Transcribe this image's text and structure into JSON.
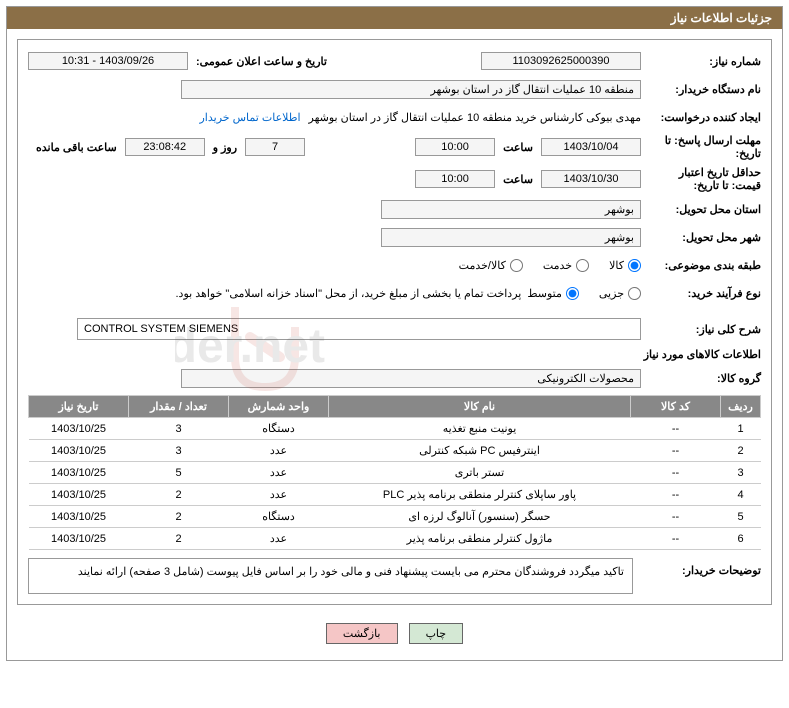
{
  "header": "جزئیات اطلاعات نیاز",
  "labels": {
    "needNo": "شماره نیاز:",
    "announceDate": "تاریخ و ساعت اعلان عمومی:",
    "buyerOrg": "نام دستگاه خریدار:",
    "requester": "ایجاد کننده درخواست:",
    "contactLink": "اطلاعات تماس خریدار",
    "answerDeadline": "مهلت ارسال پاسخ: تا تاریخ:",
    "hour": "ساعت",
    "daysAnd": "روز و",
    "remaining": "ساعت باقی مانده",
    "priceValidity": "حداقل تاریخ اعتبار قیمت: تا تاریخ:",
    "province": "استان محل تحویل:",
    "city": "شهر محل تحویل:",
    "category": "طبقه بندی موضوعی:",
    "processType": "نوع فرآیند خرید:",
    "descTitle": "شرح کلی نیاز:",
    "goodsInfo": "اطلاعات کالاهای مورد نیاز",
    "goodsGroup": "گروه کالا:",
    "buyerNotes": "توضیحات خریدار:"
  },
  "values": {
    "needNo": "1103092625000390",
    "announceDate": "1403/09/26 - 10:31",
    "buyerOrg": "منطقه 10 عملیات انتقال گاز در استان بوشهر",
    "requester": "مهدی بیوکی کارشناس خرید منطقه 10 عملیات انتقال گاز در استان بوشهر",
    "answerDate": "1403/10/04",
    "answerTime": "10:00",
    "daysLeft": "7",
    "countdown": "23:08:42",
    "priceDate": "1403/10/30",
    "priceTime": "10:00",
    "province": "بوشهر",
    "city": "بوشهر",
    "desc": "CONTROL SYSTEM SIEMENS",
    "goodsGroup": "محصولات الکترونیکی",
    "treasuryNote": "پرداخت تمام یا بخشی از مبلغ خرید، از محل \"اسناد خزانه اسلامی\" خواهد بود.",
    "buyerNotes": "تاکید میگردد فروشندگان محترم می بایست پیشنهاد فنی و مالی خود را بر اساس فایل پیوست (شامل 3 صفحه) ارائه نمایند"
  },
  "radios": {
    "category": {
      "options": [
        "کالا",
        "خدمت",
        "کالا/خدمت"
      ],
      "selected": 0
    },
    "processType": {
      "options": [
        "جزیی",
        "متوسط"
      ],
      "selected": 1
    }
  },
  "table": {
    "headers": [
      "ردیف",
      "کد کالا",
      "نام کالا",
      "واحد شمارش",
      "تعداد / مقدار",
      "تاریخ نیاز"
    ],
    "rows": [
      [
        "1",
        "--",
        "یونیت منبع تغذیه",
        "دستگاه",
        "3",
        "1403/10/25"
      ],
      [
        "2",
        "--",
        "اینترفیس PC شبکه کنترلی",
        "عدد",
        "3",
        "1403/10/25"
      ],
      [
        "3",
        "--",
        "تستر باتری",
        "عدد",
        "5",
        "1403/10/25"
      ],
      [
        "4",
        "--",
        "پاور ساپلای کنترلر منطقی برنامه پذیر PLC",
        "عدد",
        "2",
        "1403/10/25"
      ],
      [
        "5",
        "--",
        "حسگر (سنسور) آنالوگ لرزه ای",
        "دستگاه",
        "2",
        "1403/10/25"
      ],
      [
        "6",
        "--",
        "ماژول کنترلر منطقی برنامه پذیر",
        "عدد",
        "2",
        "1403/10/25"
      ]
    ]
  },
  "buttons": {
    "print": "چاپ",
    "back": "بازگشت"
  },
  "colors": {
    "headerBg": "#8b6f47",
    "headerFg": "#ffffff",
    "tableHeaderBg": "#888888",
    "border": "#999999",
    "link": "#0066cc",
    "btnPrint": "#d4e8d4",
    "btnBack": "#f5c6c6"
  }
}
